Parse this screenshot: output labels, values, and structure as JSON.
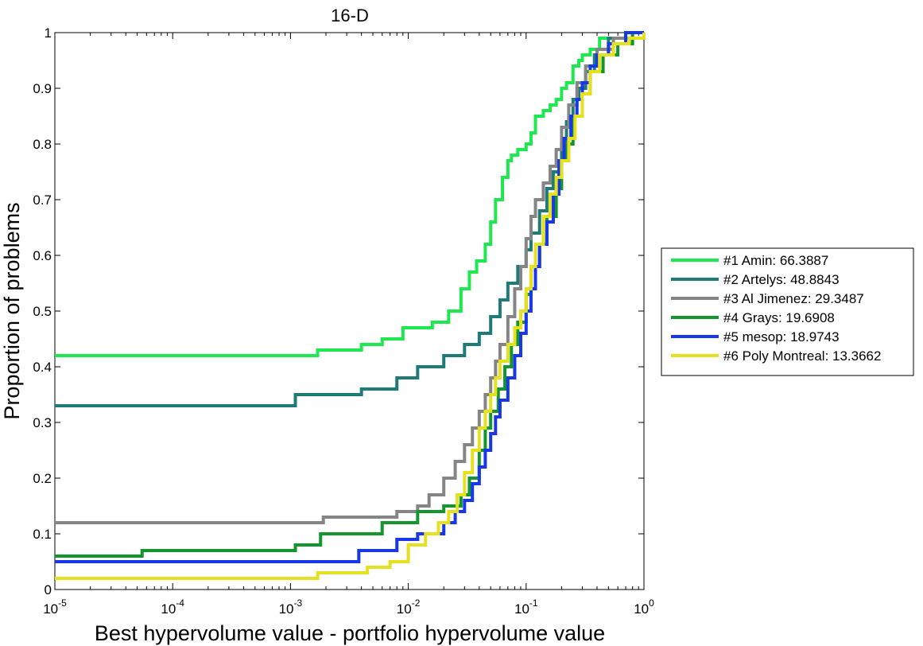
{
  "chart_data": {
    "type": "line",
    "title": "16-D",
    "xlabel": "Best hypervolume value - portfolio hypervolume value",
    "ylabel": "Proportion of problems",
    "x_scale": "log",
    "xlim": [
      1e-05,
      1
    ],
    "ylim": [
      0,
      1
    ],
    "x_tick_values": [
      1e-05,
      0.0001,
      0.001,
      0.01,
      0.1,
      1
    ],
    "x_tick_labels": [
      {
        "base": "10",
        "exp": "-5"
      },
      {
        "base": "10",
        "exp": "-4"
      },
      {
        "base": "10",
        "exp": "-3"
      },
      {
        "base": "10",
        "exp": "-2"
      },
      {
        "base": "10",
        "exp": "-1"
      },
      {
        "base": "10",
        "exp": "0"
      }
    ],
    "y_ticks": [
      0,
      0.1,
      0.2,
      0.3,
      0.4,
      0.5,
      0.6,
      0.7,
      0.8,
      0.9,
      1
    ],
    "y_tick_labels": [
      "0",
      "0.1",
      "0.2",
      "0.3",
      "0.4",
      "0.5",
      "0.6",
      "0.7",
      "0.8",
      "0.9",
      "1"
    ],
    "grid": false,
    "legend_position": "outside-right",
    "series": [
      {
        "name": "#1 Amin: 66.3887",
        "color": "#1ee84f",
        "x": [
          1e-05,
          0.0017,
          0.0017,
          0.004,
          0.004,
          0.006,
          0.006,
          0.009,
          0.009,
          0.016,
          0.016,
          0.022,
          0.022,
          0.028,
          0.033,
          0.038,
          0.045,
          0.05,
          0.055,
          0.063,
          0.07,
          0.075,
          0.085,
          0.1,
          0.11,
          0.12,
          0.14,
          0.16,
          0.18,
          0.2,
          0.22,
          0.25,
          0.28,
          0.3,
          0.35,
          0.42,
          0.55,
          0.7,
          0.85,
          1
        ],
        "y": [
          0.42,
          0.42,
          0.43,
          0.43,
          0.44,
          0.44,
          0.45,
          0.45,
          0.47,
          0.47,
          0.48,
          0.48,
          0.5,
          0.54,
          0.57,
          0.59,
          0.62,
          0.66,
          0.7,
          0.74,
          0.77,
          0.78,
          0.79,
          0.8,
          0.82,
          0.85,
          0.86,
          0.87,
          0.88,
          0.9,
          0.91,
          0.94,
          0.95,
          0.96,
          0.97,
          0.99,
          0.99,
          1,
          1,
          1
        ]
      },
      {
        "name": "#2 Artelys: 48.8843",
        "color": "#1f7b78",
        "x": [
          1e-05,
          0.0011,
          0.0011,
          0.004,
          0.004,
          0.008,
          0.008,
          0.012,
          0.012,
          0.02,
          0.02,
          0.03,
          0.03,
          0.04,
          0.05,
          0.06,
          0.07,
          0.085,
          0.1,
          0.11,
          0.13,
          0.15,
          0.17,
          0.2,
          0.22,
          0.25,
          0.28,
          0.32,
          0.38,
          0.5,
          0.7,
          1
        ],
        "y": [
          0.33,
          0.33,
          0.35,
          0.35,
          0.36,
          0.36,
          0.38,
          0.38,
          0.4,
          0.4,
          0.42,
          0.42,
          0.44,
          0.46,
          0.49,
          0.52,
          0.55,
          0.58,
          0.61,
          0.64,
          0.68,
          0.72,
          0.75,
          0.8,
          0.84,
          0.88,
          0.9,
          0.93,
          0.96,
          0.99,
          1,
          1
        ]
      },
      {
        "name": "#3 Al Jimenez: 29.3487",
        "color": "#858585",
        "x": [
          1e-05,
          0.0019,
          0.0019,
          0.008,
          0.008,
          0.012,
          0.015,
          0.02,
          0.025,
          0.03,
          0.035,
          0.04,
          0.045,
          0.05,
          0.055,
          0.06,
          0.07,
          0.08,
          0.09,
          0.1,
          0.11,
          0.12,
          0.14,
          0.16,
          0.18,
          0.2,
          0.23,
          0.27,
          0.32,
          0.4,
          0.55,
          0.8,
          1
        ],
        "y": [
          0.12,
          0.12,
          0.13,
          0.13,
          0.14,
          0.15,
          0.17,
          0.2,
          0.23,
          0.26,
          0.29,
          0.32,
          0.35,
          0.38,
          0.41,
          0.44,
          0.49,
          0.54,
          0.58,
          0.63,
          0.67,
          0.7,
          0.73,
          0.76,
          0.79,
          0.83,
          0.87,
          0.91,
          0.94,
          0.97,
          0.99,
          1,
          1
        ]
      },
      {
        "name": "#4 Grays: 19.6908",
        "color": "#14962e",
        "x": [
          1e-05,
          5.5e-05,
          5.5e-05,
          0.0011,
          0.0011,
          0.0018,
          0.0018,
          0.006,
          0.006,
          0.012,
          0.012,
          0.02,
          0.02,
          0.028,
          0.033,
          0.04,
          0.045,
          0.05,
          0.058,
          0.066,
          0.075,
          0.085,
          0.1,
          0.11,
          0.13,
          0.15,
          0.18,
          0.2,
          0.22,
          0.25,
          0.3,
          0.35,
          0.45,
          0.6,
          0.8,
          1
        ],
        "y": [
          0.06,
          0.06,
          0.07,
          0.07,
          0.08,
          0.08,
          0.1,
          0.1,
          0.12,
          0.12,
          0.14,
          0.14,
          0.15,
          0.17,
          0.2,
          0.25,
          0.29,
          0.32,
          0.36,
          0.4,
          0.44,
          0.48,
          0.53,
          0.58,
          0.62,
          0.67,
          0.72,
          0.77,
          0.8,
          0.85,
          0.89,
          0.93,
          0.96,
          0.98,
          1,
          1
        ]
      },
      {
        "name": "#5 mesop: 18.9743",
        "color": "#1737e8",
        "x": [
          1e-05,
          0.0038,
          0.0038,
          0.008,
          0.008,
          0.012,
          0.012,
          0.02,
          0.025,
          0.03,
          0.035,
          0.04,
          0.045,
          0.05,
          0.055,
          0.06,
          0.07,
          0.08,
          0.09,
          0.1,
          0.11,
          0.12,
          0.13,
          0.15,
          0.17,
          0.19,
          0.21,
          0.24,
          0.27,
          0.3,
          0.35,
          0.4,
          0.5,
          0.7,
          1
        ],
        "y": [
          0.05,
          0.05,
          0.07,
          0.07,
          0.09,
          0.09,
          0.1,
          0.12,
          0.14,
          0.16,
          0.19,
          0.22,
          0.25,
          0.28,
          0.31,
          0.34,
          0.38,
          0.42,
          0.46,
          0.5,
          0.54,
          0.58,
          0.62,
          0.66,
          0.71,
          0.77,
          0.81,
          0.85,
          0.88,
          0.91,
          0.94,
          0.96,
          0.98,
          1,
          1
        ]
      },
      {
        "name": "#6 Poly Montreal: 13.3662",
        "color": "#e5e11e",
        "x": [
          1e-05,
          0.0017,
          0.0017,
          0.0045,
          0.0045,
          0.007,
          0.007,
          0.01,
          0.014,
          0.018,
          0.022,
          0.026,
          0.03,
          0.035,
          0.04,
          0.045,
          0.05,
          0.055,
          0.06,
          0.07,
          0.08,
          0.09,
          0.1,
          0.11,
          0.12,
          0.14,
          0.16,
          0.18,
          0.2,
          0.23,
          0.26,
          0.3,
          0.35,
          0.42,
          0.55,
          0.75,
          1
        ],
        "y": [
          0.02,
          0.02,
          0.03,
          0.03,
          0.04,
          0.04,
          0.05,
          0.08,
          0.1,
          0.12,
          0.14,
          0.17,
          0.21,
          0.25,
          0.29,
          0.32,
          0.35,
          0.38,
          0.41,
          0.44,
          0.47,
          0.5,
          0.54,
          0.58,
          0.62,
          0.67,
          0.71,
          0.74,
          0.77,
          0.81,
          0.85,
          0.89,
          0.93,
          0.96,
          0.98,
          0.99,
          1
        ]
      }
    ]
  }
}
